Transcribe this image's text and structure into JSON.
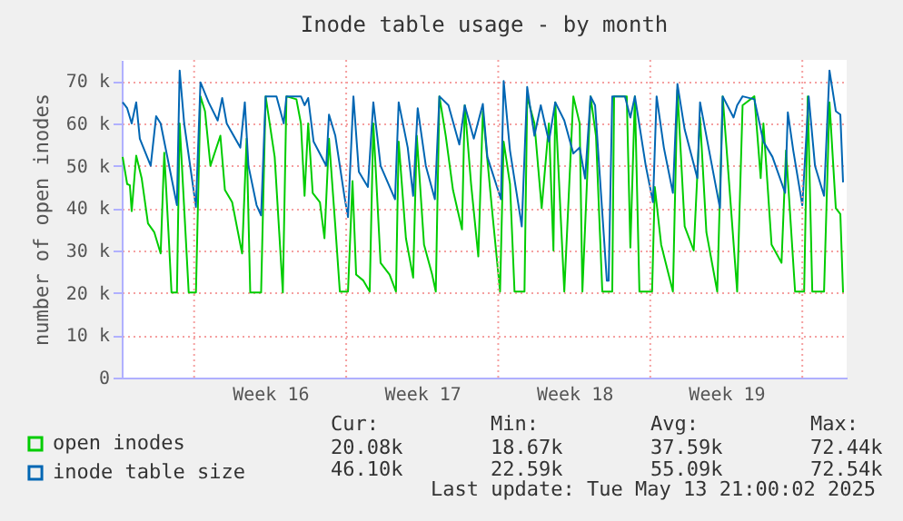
{
  "chart_data": {
    "type": "line",
    "title": "Inode table usage - by month",
    "ylabel": "number of open inodes",
    "xlim": [
      "2025-04-10T16:00",
      "2025-05-14T01:00"
    ],
    "ylim": [
      0,
      75000
    ],
    "xticks": [
      {
        "value": "2025-04-14T00:00",
        "label": null
      },
      {
        "value": "2025-04-17T12:00",
        "label": "Week 16"
      },
      {
        "value": "2025-04-21T00:00",
        "label": null
      },
      {
        "value": "2025-04-24T12:00",
        "label": "Week 17"
      },
      {
        "value": "2025-04-28T00:00",
        "label": null
      },
      {
        "value": "2025-05-01T12:00",
        "label": "Week 18"
      },
      {
        "value": "2025-05-05T00:00",
        "label": null
      },
      {
        "value": "2025-05-08T12:00",
        "label": "Week 19"
      },
      {
        "value": "2025-05-12T00:00",
        "label": null
      }
    ],
    "yticks": [
      0,
      {
        "value": 10000,
        "label": "10 k"
      },
      {
        "value": 20000,
        "label": "20 k"
      },
      {
        "value": 30000,
        "label": "30 k"
      },
      {
        "value": 40000,
        "label": "40 k"
      },
      {
        "value": 50000,
        "label": "50 k"
      },
      {
        "value": 60000,
        "label": "60 k"
      },
      {
        "value": 70000,
        "label": "70 k"
      }
    ],
    "grid": true,
    "legend": "bottom left",
    "series": [
      {
        "name": "open inodes",
        "color": "#00cc00",
        "x": [
          "2025-04-10T17:00",
          "2025-04-10T22:00",
          "2025-04-11T01:00",
          "2025-04-11T03:00",
          "2025-04-11T08:00",
          "2025-04-11T14:00",
          "2025-04-11T21:00",
          "2025-04-12T04:00",
          "2025-04-12T11:00",
          "2025-04-12T15:00",
          "2025-04-12T20:00",
          "2025-04-12T23:00",
          "2025-04-13T05:00",
          "2025-04-13T08:00",
          "2025-04-13T18:00",
          "2025-04-14T02:00",
          "2025-04-14T07:00",
          "2025-04-14T12:00",
          "2025-04-14T18:00",
          "2025-04-15T05:00",
          "2025-04-15T10:00",
          "2025-04-15T18:00",
          "2025-04-16T05:00",
          "2025-04-16T10:00",
          "2025-04-16T14:00",
          "2025-04-17T02:00",
          "2025-04-17T07:00",
          "2025-04-17T17:00",
          "2025-04-18T02:00",
          "2025-04-18T06:00",
          "2025-04-18T17:00",
          "2025-04-18T22:00",
          "2025-04-19T02:00",
          "2025-04-19T06:00",
          "2025-04-19T11:00",
          "2025-04-19T19:00",
          "2025-04-20T00:00",
          "2025-04-20T05:00",
          "2025-04-20T12:00",
          "2025-04-20T17:00",
          "2025-04-21T02:00",
          "2025-04-21T07:00",
          "2025-04-21T11:00",
          "2025-04-21T19:00",
          "2025-04-22T02:00",
          "2025-04-22T06:00",
          "2025-04-22T14:00",
          "2025-04-23T00:00",
          "2025-04-23T07:00",
          "2025-04-23T10:00",
          "2025-04-23T18:00",
          "2025-04-24T02:00",
          "2025-04-24T06:00",
          "2025-04-24T14:00",
          "2025-04-24T23:00",
          "2025-04-25T03:00",
          "2025-04-25T07:00",
          "2025-04-25T14:00",
          "2025-04-25T22:00",
          "2025-04-26T08:00",
          "2025-04-26T11:00",
          "2025-04-26T18:00",
          "2025-04-27T02:00",
          "2025-04-27T07:00",
          "2025-04-27T17:00",
          "2025-04-28T02:00",
          "2025-04-28T06:00",
          "2025-04-28T13:00",
          "2025-04-28T18:00",
          "2025-04-29T05:00",
          "2025-04-29T08:00",
          "2025-04-29T16:00",
          "2025-04-30T00:00",
          "2025-04-30T08:00",
          "2025-04-30T13:00",
          "2025-04-30T15:00",
          "2025-05-01T01:00",
          "2025-05-01T11:00",
          "2025-05-01T18:00",
          "2025-05-01T21:00",
          "2025-05-02T06:00",
          "2025-05-02T12:00",
          "2025-05-02T19:00",
          "2025-05-03T06:00",
          "2025-05-03T08:00",
          "2025-05-03T22:00",
          "2025-05-04T02:00",
          "2025-05-04T07:00",
          "2025-05-04T12:00",
          "2025-05-05T02:00",
          "2025-05-05T05:00",
          "2025-05-05T12:00",
          "2025-05-05T22:00",
          "2025-05-06T01:00",
          "2025-05-06T06:00",
          "2025-05-06T14:00",
          "2025-05-07T00:00",
          "2025-05-07T07:00",
          "2025-05-07T14:00",
          "2025-05-08T02:00",
          "2025-05-08T08:00",
          "2025-05-09T00:00",
          "2025-05-09T06:00",
          "2025-05-09T19:00",
          "2025-05-10T02:00",
          "2025-05-10T05:00",
          "2025-05-10T14:00",
          "2025-05-11T01:00",
          "2025-05-11T06:00",
          "2025-05-11T16:00",
          "2025-05-12T02:00",
          "2025-05-12T06:00",
          "2025-05-12T11:00",
          "2025-05-13T00:00",
          "2025-05-13T06:00",
          "2025-05-13T13:00",
          "2025-05-13T18:00",
          "2025-05-13T21:00"
        ],
        "values": [
          52100,
          45700,
          45400,
          39300,
          52400,
          47100,
          36400,
          34300,
          29300,
          53100,
          32900,
          20100,
          20100,
          60000,
          20100,
          20100,
          66400,
          62900,
          50000,
          57100,
          44300,
          41400,
          29300,
          56400,
          20100,
          20100,
          66400,
          52100,
          20100,
          66400,
          65700,
          60000,
          42900,
          60000,
          43600,
          41400,
          32900,
          56400,
          35700,
          20300,
          20300,
          46400,
          24300,
          22900,
          20300,
          60000,
          27100,
          24300,
          20300,
          55700,
          32900,
          23600,
          57100,
          31400,
          24300,
          20300,
          66400,
          57100,
          44300,
          35000,
          64300,
          45700,
          28600,
          62900,
          40000,
          20300,
          55700,
          45700,
          20300,
          20300,
          66400,
          60000,
          40000,
          60000,
          30000,
          65000,
          20300,
          66400,
          60000,
          20300,
          66400,
          57100,
          20300,
          20300,
          66400,
          66400,
          30700,
          66400,
          20300,
          20300,
          45000,
          31400,
          22900,
          20300,
          67900,
          35700,
          30000,
          61400,
          34300,
          20300,
          66400,
          20300,
          64300,
          66400,
          47100,
          60000,
          31400,
          27100,
          53600,
          20300,
          20300,
          66400,
          20300,
          20300,
          65000,
          40000,
          38600,
          20100
        ]
      },
      {
        "name": "inode table size",
        "color": "#0066b3",
        "x": [
          "2025-04-10T17:00",
          "2025-04-10T22:00",
          "2025-04-11T03:00",
          "2025-04-11T08:00",
          "2025-04-11T12:00",
          "2025-04-12T00:00",
          "2025-04-12T06:00",
          "2025-04-12T11:00",
          "2025-04-13T05:00",
          "2025-04-13T08:00",
          "2025-04-13T13:00",
          "2025-04-14T02:00",
          "2025-04-14T07:00",
          "2025-04-14T16:00",
          "2025-04-15T02:00",
          "2025-04-15T07:00",
          "2025-04-15T12:00",
          "2025-04-16T03:00",
          "2025-04-16T08:00",
          "2025-04-16T12:00",
          "2025-04-16T21:00",
          "2025-04-17T02:00",
          "2025-04-17T07:00",
          "2025-04-17T19:00",
          "2025-04-18T03:00",
          "2025-04-18T06:00",
          "2025-04-18T22:00",
          "2025-04-19T02:00",
          "2025-04-19T06:00",
          "2025-04-19T12:00",
          "2025-04-20T02:00",
          "2025-04-20T05:00",
          "2025-04-20T12:00",
          "2025-04-20T22:00",
          "2025-04-21T02:00",
          "2025-04-21T08:00",
          "2025-04-21T14:00",
          "2025-04-22T00:00",
          "2025-04-22T06:00",
          "2025-04-22T14:00",
          "2025-04-23T06:00",
          "2025-04-23T10:00",
          "2025-04-23T20:00",
          "2025-04-24T02:00",
          "2025-04-24T07:00",
          "2025-04-24T16:00",
          "2025-04-25T02:00",
          "2025-04-25T07:00",
          "2025-04-25T17:00",
          "2025-04-26T05:00",
          "2025-04-26T11:00",
          "2025-04-26T21:00",
          "2025-04-27T07:00",
          "2025-04-27T12:00",
          "2025-04-28T03:00",
          "2025-04-28T06:00",
          "2025-04-28T13:00",
          "2025-04-29T02:00",
          "2025-04-29T08:00",
          "2025-04-29T16:00",
          "2025-04-29T23:00",
          "2025-04-30T08:00",
          "2025-04-30T15:00",
          "2025-05-01T01:00",
          "2025-05-01T11:00",
          "2025-05-01T18:00",
          "2025-05-02T00:00",
          "2025-05-02T06:00",
          "2025-05-02T11:00",
          "2025-05-02T20:00",
          "2025-05-03T00:00",
          "2025-05-03T02:00",
          "2025-05-03T06:00",
          "2025-05-03T20:00",
          "2025-05-04T02:00",
          "2025-05-04T07:00",
          "2025-05-04T19:00",
          "2025-05-05T03:00",
          "2025-05-05T07:00",
          "2025-05-05T15:00",
          "2025-05-06T01:00",
          "2025-05-06T06:00",
          "2025-05-06T14:00",
          "2025-05-07T04:00",
          "2025-05-07T07:00",
          "2025-05-07T17:00",
          "2025-05-08T05:00",
          "2025-05-08T08:00",
          "2025-05-08T20:00",
          "2025-05-09T00:00",
          "2025-05-09T06:00",
          "2025-05-09T19:00",
          "2025-05-10T05:00",
          "2025-05-10T15:00",
          "2025-05-11T05:00",
          "2025-05-11T08:00",
          "2025-05-11T14:00",
          "2025-05-12T00:00",
          "2025-05-12T07:00",
          "2025-05-12T14:00",
          "2025-05-13T00:00",
          "2025-05-13T06:00",
          "2025-05-13T13:00",
          "2025-05-13T18:00",
          "2025-05-13T21:00"
        ],
        "values": [
          65000,
          63600,
          60000,
          65000,
          56400,
          50000,
          61700,
          60000,
          40700,
          72500,
          60000,
          40300,
          69700,
          65000,
          60700,
          66000,
          60000,
          54300,
          65000,
          50000,
          40700,
          38300,
          66400,
          66400,
          60000,
          66400,
          66400,
          64300,
          66000,
          55700,
          50000,
          62100,
          57100,
          42900,
          37900,
          66400,
          48600,
          45000,
          65000,
          50000,
          42100,
          65000,
          54300,
          42900,
          63600,
          50000,
          42100,
          66400,
          64300,
          55000,
          64300,
          56400,
          64600,
          52100,
          42100,
          70000,
          53600,
          35700,
          68600,
          57100,
          64300,
          55700,
          65000,
          60700,
          52900,
          54300,
          47000,
          66400,
          64300,
          35700,
          22900,
          22900,
          66400,
          66400,
          61400,
          66400,
          50000,
          41400,
          66400,
          54300,
          43600,
          69300,
          58600,
          47100,
          65000,
          53600,
          40000,
          66400,
          61400,
          64300,
          66400,
          65700,
          55700,
          52100,
          43600,
          62600,
          53600,
          40700,
          66400,
          50000,
          42900,
          72500,
          62900,
          62100,
          46100
        ]
      }
    ],
    "annotations": [
      "Cur:",
      "Min:",
      "Avg:",
      "Max:",
      "20.08k",
      "18.67k",
      "37.59k",
      "72.44k",
      "46.10k",
      "22.59k",
      "55.09k",
      "72.54k",
      "Last update: Tue May 13 21:00:02 2025"
    ]
  }
}
